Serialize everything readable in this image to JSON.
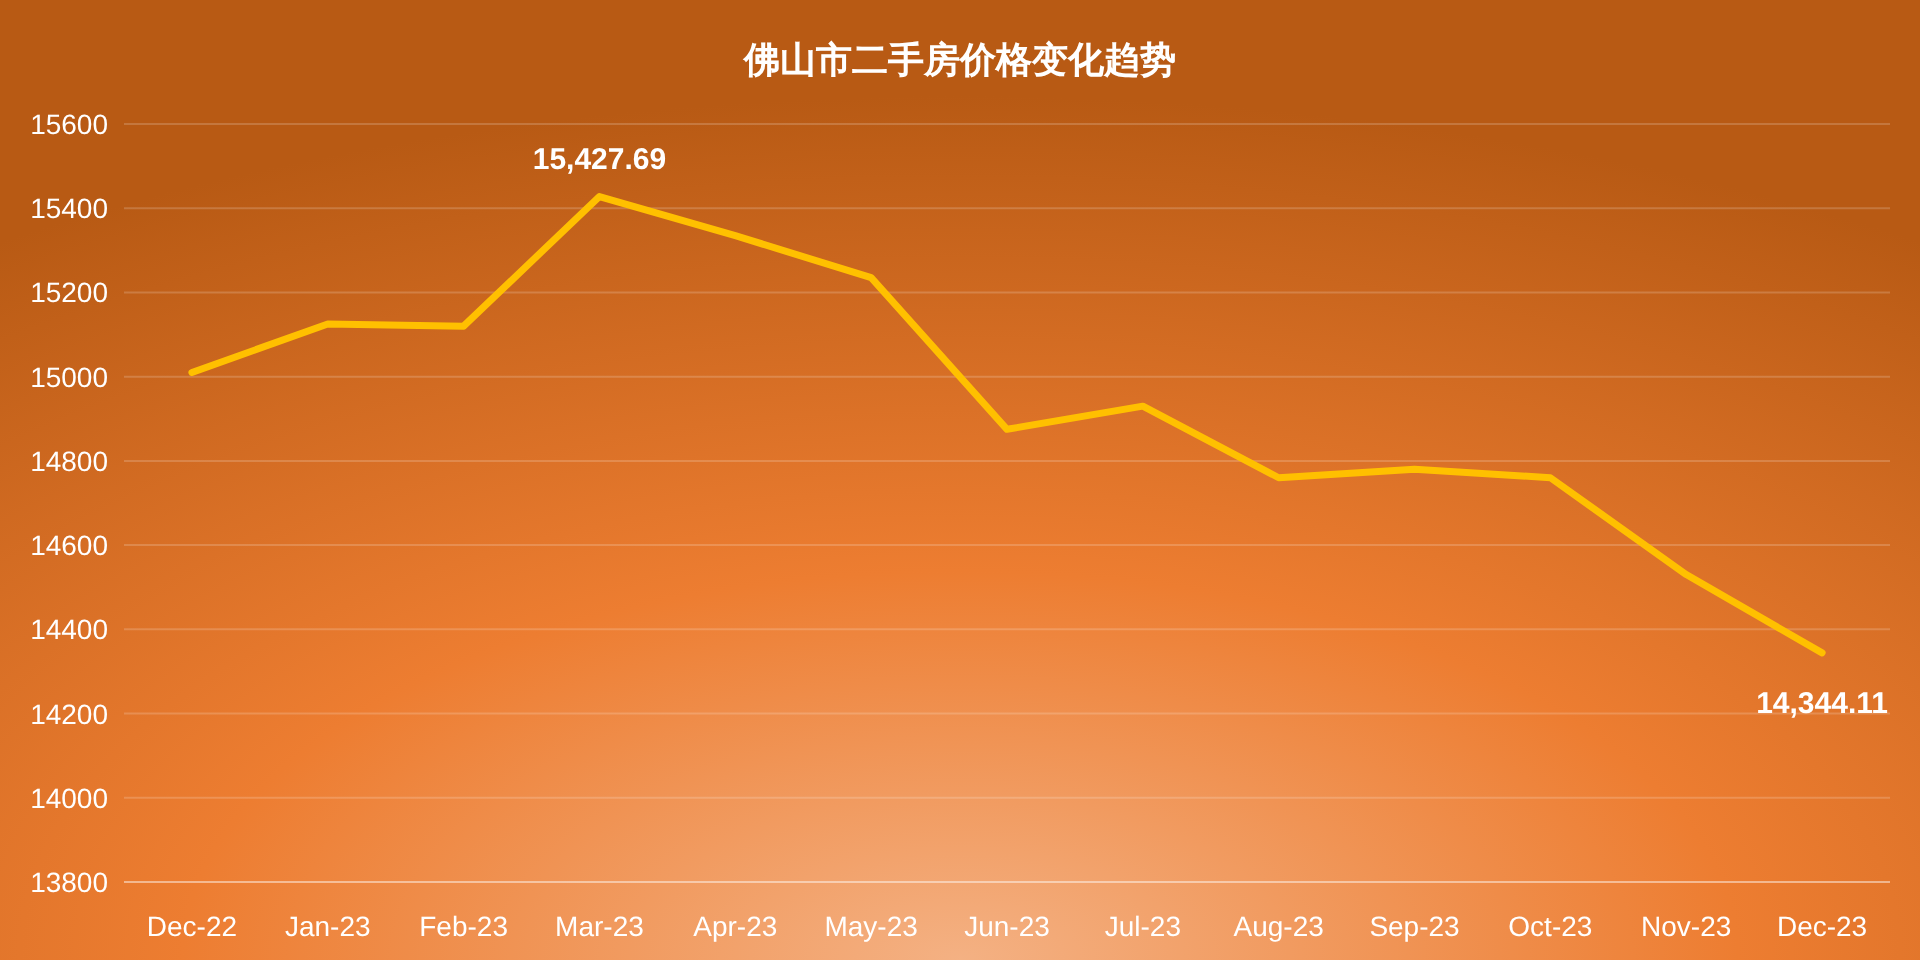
{
  "chart_data": {
    "type": "line",
    "title": "佛山市二手房价格变化趋势",
    "categories": [
      "Dec-22",
      "Jan-23",
      "Feb-23",
      "Mar-23",
      "Apr-23",
      "May-23",
      "Jun-23",
      "Jul-23",
      "Aug-23",
      "Sep-23",
      "Oct-23",
      "Nov-23",
      "Dec-23"
    ],
    "series": [
      {
        "color": "#ffc000",
        "values": [
          15010,
          15125,
          15120,
          15427.69,
          15335,
          15235,
          14875,
          14930,
          14760,
          14780,
          14760,
          14530,
          14344.11
        ],
        "value_labels": [
          null,
          null,
          null,
          "15,427.69",
          null,
          null,
          null,
          null,
          null,
          null,
          null,
          null,
          "14,344.11"
        ]
      }
    ],
    "ylim": [
      13800,
      15600
    ],
    "yticks": [
      13800,
      14000,
      14200,
      14400,
      14600,
      14800,
      15000,
      15200,
      15400,
      15600
    ],
    "grid": "y"
  }
}
